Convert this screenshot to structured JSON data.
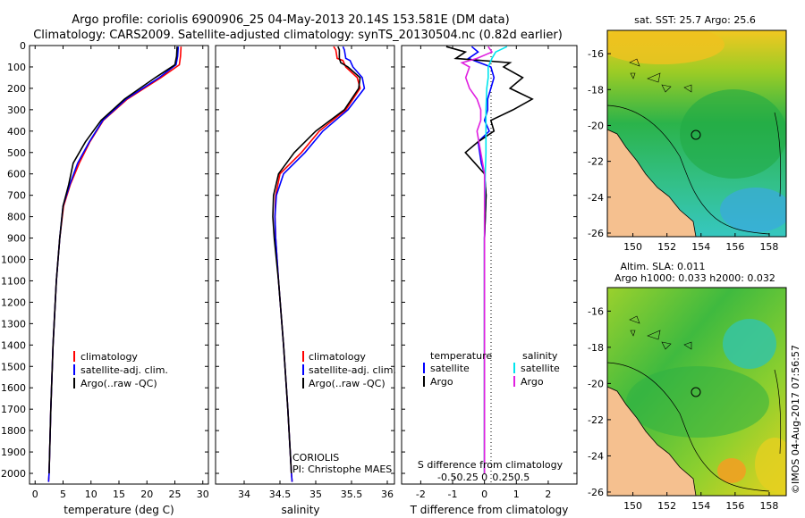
{
  "header": {
    "line1": "Argo profile: coriolis 6900906_25 04-May-2013 20.14S 153.581E (DM data)",
    "line2": "Climatology: CARS2009. Satellite-adjusted climatology: synTS_20130504.nc (0.82d earlier)"
  },
  "colors": {
    "climatology": "#ff0000",
    "satellite": "#0000ff",
    "argo": "#000000",
    "sat_salinity": "#00e5ee",
    "argo_salinity": "#e020e0",
    "land": "#f5c08f"
  },
  "chart_data": [
    {
      "type": "line",
      "panel": "temperature",
      "xlabel": "temperature (deg C)",
      "xlim": [
        -1,
        31
      ],
      "xticks": [
        "0",
        "5",
        "10",
        "15",
        "20",
        "25",
        "30"
      ],
      "ylim": [
        2050,
        0
      ],
      "yticks": [
        "0",
        "100",
        "200",
        "300",
        "400",
        "500",
        "600",
        "700",
        "800",
        "900",
        "1000",
        "1100",
        "1200",
        "1300",
        "1400",
        "1500",
        "1600",
        "1700",
        "1800",
        "1900",
        "2000"
      ],
      "legend": [
        "climatology",
        "satellite-adj. clim.",
        "Argo(..raw -QC)"
      ],
      "series": [
        {
          "name": "climatology",
          "depth": [
            5,
            50,
            90,
            150,
            250,
            350,
            450,
            550,
            650,
            750,
            900,
            1100,
            1400,
            1700,
            2000,
            2040
          ],
          "values": [
            26.1,
            26.0,
            25.8,
            22.5,
            16.5,
            12.2,
            9.8,
            7.9,
            6.3,
            5.1,
            4.4,
            3.8,
            3.2,
            2.8,
            2.5,
            2.4
          ]
        },
        {
          "name": "satellite-adj. clim.",
          "depth": [
            5,
            50,
            90,
            150,
            250,
            350,
            450,
            550,
            650,
            750,
            900,
            1100,
            1400,
            1700,
            2000,
            2040
          ],
          "values": [
            25.6,
            25.5,
            25.2,
            22.2,
            16.3,
            12.1,
            9.7,
            7.6,
            6.2,
            5.0,
            4.4,
            3.8,
            3.2,
            2.8,
            2.5,
            2.4
          ]
        },
        {
          "name": "Argo(..raw -QC)",
          "depth": [
            5,
            50,
            90,
            150,
            250,
            350,
            450,
            550,
            650,
            750,
            900,
            1100,
            1400,
            1700,
            2000
          ],
          "values": [
            25.4,
            25.3,
            25.0,
            21.5,
            16.0,
            11.8,
            9.0,
            6.8,
            6.0,
            5.0,
            4.4,
            3.8,
            3.2,
            2.8,
            2.5
          ]
        }
      ]
    },
    {
      "type": "line",
      "panel": "salinity",
      "xlabel": "salinity",
      "xlim": [
        33.6,
        36.1
      ],
      "xticks": [
        "34",
        "34.5",
        "35",
        "35.5",
        "36"
      ],
      "ylim": [
        2050,
        0
      ],
      "legend": [
        "climatology",
        "satellite-adj. clim.",
        "Argo(..raw -QC)"
      ],
      "annotation": {
        "institution": "CORIOLIS",
        "pi": "PI: Christophe MAES"
      },
      "series": [
        {
          "name": "climatology",
          "depth": [
            5,
            20,
            60,
            70,
            100,
            150,
            200,
            300,
            400,
            500,
            600,
            700,
            800,
            900,
            1100,
            1400,
            1700,
            2000,
            2040
          ],
          "values": [
            35.25,
            35.28,
            35.3,
            35.38,
            35.42,
            35.58,
            35.62,
            35.42,
            35.05,
            34.8,
            34.5,
            34.44,
            34.43,
            34.44,
            34.48,
            34.55,
            34.61,
            34.66,
            34.67
          ]
        },
        {
          "name": "satellite-adj. clim.",
          "depth": [
            5,
            20,
            60,
            70,
            100,
            150,
            200,
            300,
            400,
            500,
            600,
            700,
            800,
            900,
            1100,
            1400,
            1700,
            2000,
            2040
          ],
          "values": [
            35.38,
            35.4,
            35.42,
            35.48,
            35.52,
            35.65,
            35.68,
            35.45,
            35.1,
            34.85,
            34.55,
            34.45,
            34.43,
            34.44,
            34.48,
            34.55,
            34.61,
            34.66,
            34.67
          ]
        },
        {
          "name": "Argo(..raw -QC)",
          "depth": [
            5,
            20,
            60,
            80,
            100,
            150,
            200,
            300,
            400,
            500,
            600,
            700,
            800,
            900,
            1100,
            1400,
            1700,
            2000
          ],
          "values": [
            35.31,
            35.33,
            35.33,
            35.35,
            35.45,
            35.62,
            35.6,
            35.4,
            35.0,
            34.7,
            34.48,
            34.41,
            34.4,
            34.42,
            34.48,
            34.55,
            34.61,
            34.66
          ]
        }
      ]
    },
    {
      "type": "line",
      "panel": "difference",
      "xlabel": "T difference from climatology",
      "xlabel_top": "S difference from climatology",
      "xlim": [
        -2.6,
        2.9
      ],
      "xticks": [
        "-2",
        "-1",
        "0",
        "1",
        "2"
      ],
      "xticks_s": [
        "-0.5",
        "-0.25",
        "0",
        "0.25",
        "0.5"
      ],
      "ylim": [
        2050,
        0
      ],
      "legend_t": {
        "title": "temperature",
        "satellite": "satellite",
        "argo": "Argo"
      },
      "legend_s": {
        "title": "salinity",
        "satellite": "satellite",
        "argo": "Argo"
      },
      "series": [
        {
          "name": "temperature satellite",
          "depth": [
            5,
            30,
            60,
            100,
            150,
            200,
            250,
            300,
            350,
            400,
            450,
            500,
            550,
            600,
            700,
            900,
            1200,
            1600,
            2000
          ],
          "values": [
            -0.4,
            -0.2,
            -0.5,
            0.2,
            0.3,
            0.2,
            0.1,
            0.1,
            0.0,
            0.15,
            -0.2,
            -0.15,
            -0.1,
            0.0,
            0.05,
            0.0,
            0.0,
            0.0,
            0.0
          ]
        },
        {
          "name": "temperature Argo",
          "depth": [
            5,
            30,
            60,
            80,
            100,
            150,
            200,
            250,
            300,
            350,
            400,
            450,
            500,
            550,
            600,
            700,
            900,
            1200,
            1600,
            2000
          ],
          "values": [
            -1.2,
            -0.6,
            -0.9,
            0.8,
            0.6,
            1.2,
            0.8,
            1.5,
            0.9,
            0.2,
            0.3,
            -0.2,
            -0.6,
            -0.3,
            0.0,
            0.05,
            0.0,
            0.0,
            0.0,
            0.0
          ]
        },
        {
          "name": "salinity satellite",
          "depth": [
            5,
            30,
            60,
            100,
            150,
            200,
            300,
            400,
            500,
            600,
            800,
            1000,
            1300,
            1600,
            2000
          ],
          "values": [
            0.3,
            0.15,
            0.1,
            0.05,
            0.05,
            0.03,
            0.02,
            0.02,
            0.02,
            0.01,
            0.0,
            0.0,
            0.0,
            0.0,
            0.0
          ]
        },
        {
          "name": "salinity Argo",
          "depth": [
            5,
            30,
            60,
            80,
            100,
            150,
            200,
            250,
            300,
            350,
            400,
            500,
            600,
            800,
            1000,
            1300,
            1600,
            2000
          ],
          "values": [
            0.05,
            0.1,
            -0.1,
            -0.3,
            -0.2,
            -0.25,
            -0.2,
            -0.1,
            -0.05,
            -0.05,
            -0.1,
            -0.05,
            0.0,
            0.0,
            0.0,
            0.0,
            0.0,
            0.0
          ]
        }
      ]
    },
    {
      "type": "heatmap",
      "panel": "sst_map",
      "title": "sat. SST: 25.7  Argo: 25.6",
      "xticks": [
        "150",
        "152",
        "154",
        "156",
        "158"
      ],
      "yticks": [
        "-16",
        "-18",
        "-20",
        "-22",
        "-24",
        "-26"
      ],
      "xlim": [
        148.5,
        159.0
      ],
      "ylim": [
        -26.2,
        -14.7
      ],
      "argo_marker": {
        "lon": 153.581,
        "lat": -20.14
      }
    },
    {
      "type": "heatmap",
      "panel": "sla_map",
      "title_line1": "Altim. SLA: 0.011",
      "title_line2": "Argo h1000: 0.033 h2000: 0.032",
      "xticks": [
        "150",
        "152",
        "154",
        "156",
        "158"
      ],
      "yticks": [
        "-16",
        "-18",
        "-20",
        "-22",
        "-24",
        "-26"
      ],
      "xlim": [
        148.5,
        159.0
      ],
      "ylim": [
        -26.2,
        -14.7
      ],
      "argo_marker": {
        "lon": 153.581,
        "lat": -20.14
      }
    }
  ],
  "credit": "©IMOS 04-Aug-2017 07:56:57"
}
